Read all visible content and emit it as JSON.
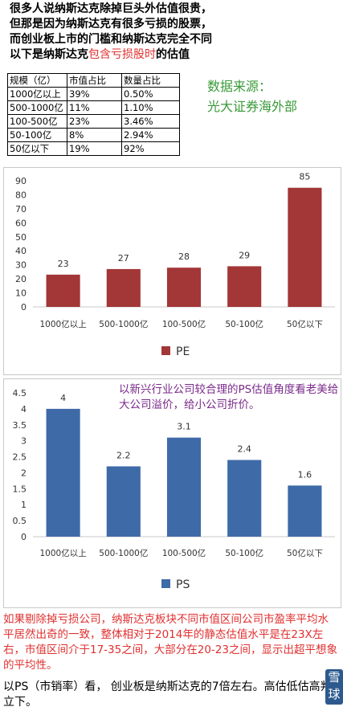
{
  "intro": {
    "line1": "很多人说纳斯达克除掉巨头外估值很贵，",
    "line2": "但那是因为纳斯达克有很多亏损的股票，",
    "line3": "而创业板上市的门槛和纳斯达克完全不同",
    "line4_a": "以下是纳斯达克",
    "line4_b": "包含亏损股时",
    "line4_c": "的估值"
  },
  "table": {
    "headers": [
      "规模（亿）",
      "市值占比",
      "数量占比"
    ],
    "rows": [
      [
        "1000亿以上",
        "39%",
        "0.50%"
      ],
      [
        "500-1000亿",
        "11%",
        "1.10%"
      ],
      [
        "100-500亿",
        "23%",
        "3.46%"
      ],
      [
        "50-100亿",
        "8%",
        "2.94%"
      ],
      [
        "50亿以下",
        "19%",
        "92%"
      ]
    ]
  },
  "source": {
    "line1": "数据来源：",
    "line2": "光大证券海外部"
  },
  "chart_data": [
    {
      "type": "bar",
      "categories": [
        "1000亿以上",
        "500-1000亿",
        "100-500亿",
        "50-100亿",
        "50亿以下"
      ],
      "series": [
        {
          "name": "PE",
          "values": [
            23,
            27,
            28,
            29,
            85
          ]
        }
      ],
      "data_labels": [
        "23",
        "27",
        "28",
        "29",
        "85"
      ],
      "ylim": [
        0,
        90
      ],
      "yticks": [
        0,
        10,
        20,
        30,
        40,
        50,
        60,
        70,
        80,
        90
      ],
      "ytick_labels": [
        "0",
        "10",
        "20",
        "30",
        "40",
        "50",
        "60",
        "70",
        "80",
        "90"
      ],
      "color": "#a33636",
      "legend": "bottom",
      "grid": false
    },
    {
      "type": "bar",
      "categories": [
        "1000亿以上",
        "500-1000亿",
        "100-500亿",
        "50-100亿",
        "50亿以下"
      ],
      "series": [
        {
          "name": "PS",
          "values": [
            4,
            2.2,
            3.1,
            2.4,
            1.6
          ]
        }
      ],
      "data_labels": [
        "4",
        "2.2",
        "3.1",
        "2.4",
        "1.6"
      ],
      "ylim": [
        0,
        4.5
      ],
      "yticks": [
        0,
        0.5,
        1,
        1.5,
        2,
        2.5,
        3,
        3.5,
        4,
        4.5
      ],
      "ytick_labels": [
        "0",
        "0.5",
        "1",
        "1.5",
        "2",
        "2.5",
        "3",
        "3.5",
        "4",
        "4.5"
      ],
      "color": "#3e6aa8",
      "legend": "bottom",
      "grid": false
    }
  ],
  "note": "以新兴行业公司较合理的PS估值角度看老美给大公司溢价，给小公司折价。",
  "bottom1": "如果剔除掉亏损公司，纳斯达克板块不同市值区间公司市盈率平均水平居然出奇的一致，整体相对于2014年的静态估值水平是在23X左右，市值区间介于17-35之间，大部分在20-23之间，显示出超平想象的平均性。",
  "bottom2": "以PS（市销率）看， 创业板是纳斯达克的7倍左右。高估低估高判立下。",
  "badge": "雪球"
}
